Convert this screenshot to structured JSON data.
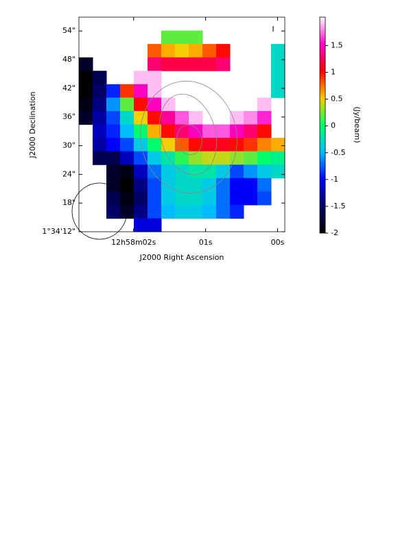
{
  "chart_data": {
    "type": "heatmap",
    "xlabel": "J2000 Right Ascension",
    "ylabel": "J2000 Declination",
    "annotation": "I",
    "xlim": [
      2.76,
      -0.1
    ],
    "xticks": [
      {
        "value": 2,
        "label": "12h58m02s"
      },
      {
        "value": 1,
        "label": "01s"
      },
      {
        "value": 0,
        "label": "00s"
      }
    ],
    "ylim": [
      12,
      56.9
    ],
    "yticks": [
      {
        "value": 12,
        "label": "1°34'12\""
      },
      {
        "value": 18,
        "label": "18\""
      },
      {
        "value": 24,
        "label": "24\""
      },
      {
        "value": 30,
        "label": "30\""
      },
      {
        "value": 36,
        "label": "36\""
      },
      {
        "value": 42,
        "label": "42\""
      },
      {
        "value": 48,
        "label": "48\""
      },
      {
        "value": 54,
        "label": "54\""
      }
    ],
    "colormap": [
      "#000000",
      "#000066",
      "#0000ff",
      "#00bfff",
      "#00ff66",
      "#ffcc00",
      "#ff0000",
      "#ff00cc",
      "#ffffff"
    ],
    "colorbar": {
      "label": "(Jy/beam)",
      "lim": [
        -2,
        2.03
      ],
      "ticks": [
        -2,
        -1.5,
        -1,
        -0.5,
        0,
        0.5,
        1,
        1.5
      ]
    },
    "z": [
      [
        null,
        null,
        null,
        null,
        null,
        null,
        null,
        null,
        null,
        null,
        null,
        null,
        null,
        null,
        null
      ],
      [
        null,
        null,
        null,
        null,
        null,
        null,
        0.2,
        0.2,
        0.2,
        null,
        null,
        null,
        null,
        null,
        null
      ],
      [
        null,
        null,
        null,
        null,
        null,
        0.8,
        0.6,
        0.5,
        0.6,
        0.8,
        1.0,
        null,
        null,
        null,
        -0.3
      ],
      [
        -1.8,
        null,
        null,
        null,
        null,
        1.3,
        1.2,
        1.2,
        1.2,
        1.2,
        1.3,
        null,
        null,
        null,
        -0.3
      ],
      [
        -2,
        -1.6,
        null,
        null,
        1.9,
        1.9,
        null,
        null,
        null,
        null,
        null,
        null,
        null,
        null,
        -0.3
      ],
      [
        -2,
        -1.5,
        -0.9,
        0.9,
        1.5,
        1.9,
        null,
        null,
        null,
        null,
        null,
        null,
        null,
        null,
        -0.3
      ],
      [
        -1.9,
        -1.4,
        -0.6,
        0.2,
        1.0,
        1.5,
        1.9,
        null,
        null,
        null,
        null,
        null,
        null,
        1.9,
        null
      ],
      [
        -1.8,
        -1.3,
        -0.8,
        -0.3,
        0.5,
        1.0,
        1.4,
        1.7,
        1.9,
        null,
        null,
        1.9,
        1.8,
        1.6,
        null
      ],
      [
        null,
        -1.2,
        -0.9,
        -0.5,
        0.0,
        0.6,
        1.0,
        1.3,
        1.5,
        1.7,
        1.7,
        1.5,
        1.3,
        1.0,
        null
      ],
      [
        null,
        -1.3,
        -1.0,
        -0.8,
        -0.4,
        0.0,
        0.5,
        0.8,
        1.0,
        1.1,
        1.1,
        1.0,
        0.9,
        0.7,
        0.6
      ],
      [
        null,
        -1.6,
        -1.6,
        -1.2,
        -0.8,
        -0.4,
        -0.2,
        0.1,
        0.3,
        0.4,
        0.4,
        0.3,
        0.2,
        0.0,
        -0.1
      ],
      [
        null,
        null,
        -1.8,
        -1.9,
        -1.2,
        -0.7,
        -0.4,
        -0.3,
        -0.2,
        -0.2,
        -0.4,
        -0.8,
        -0.6,
        -0.4,
        -0.3
      ],
      [
        null,
        null,
        -1.8,
        -2.0,
        -1.4,
        -0.8,
        -0.4,
        -0.3,
        -0.3,
        -0.4,
        -0.7,
        -1.0,
        -1.0,
        -0.7,
        null
      ],
      [
        null,
        null,
        -1.6,
        -1.9,
        -1.5,
        -0.8,
        -0.4,
        -0.3,
        -0.3,
        -0.4,
        -0.7,
        -1.0,
        -1.0,
        -0.8,
        null
      ],
      [
        null,
        null,
        -1.5,
        -1.8,
        -1.4,
        -0.8,
        -0.5,
        -0.4,
        -0.4,
        -0.5,
        -0.7,
        -0.9,
        null,
        null,
        null
      ],
      [
        null,
        null,
        null,
        null,
        -1.1,
        -1.1,
        null,
        null,
        null,
        null,
        null,
        null,
        null,
        null,
        null
      ]
    ]
  }
}
